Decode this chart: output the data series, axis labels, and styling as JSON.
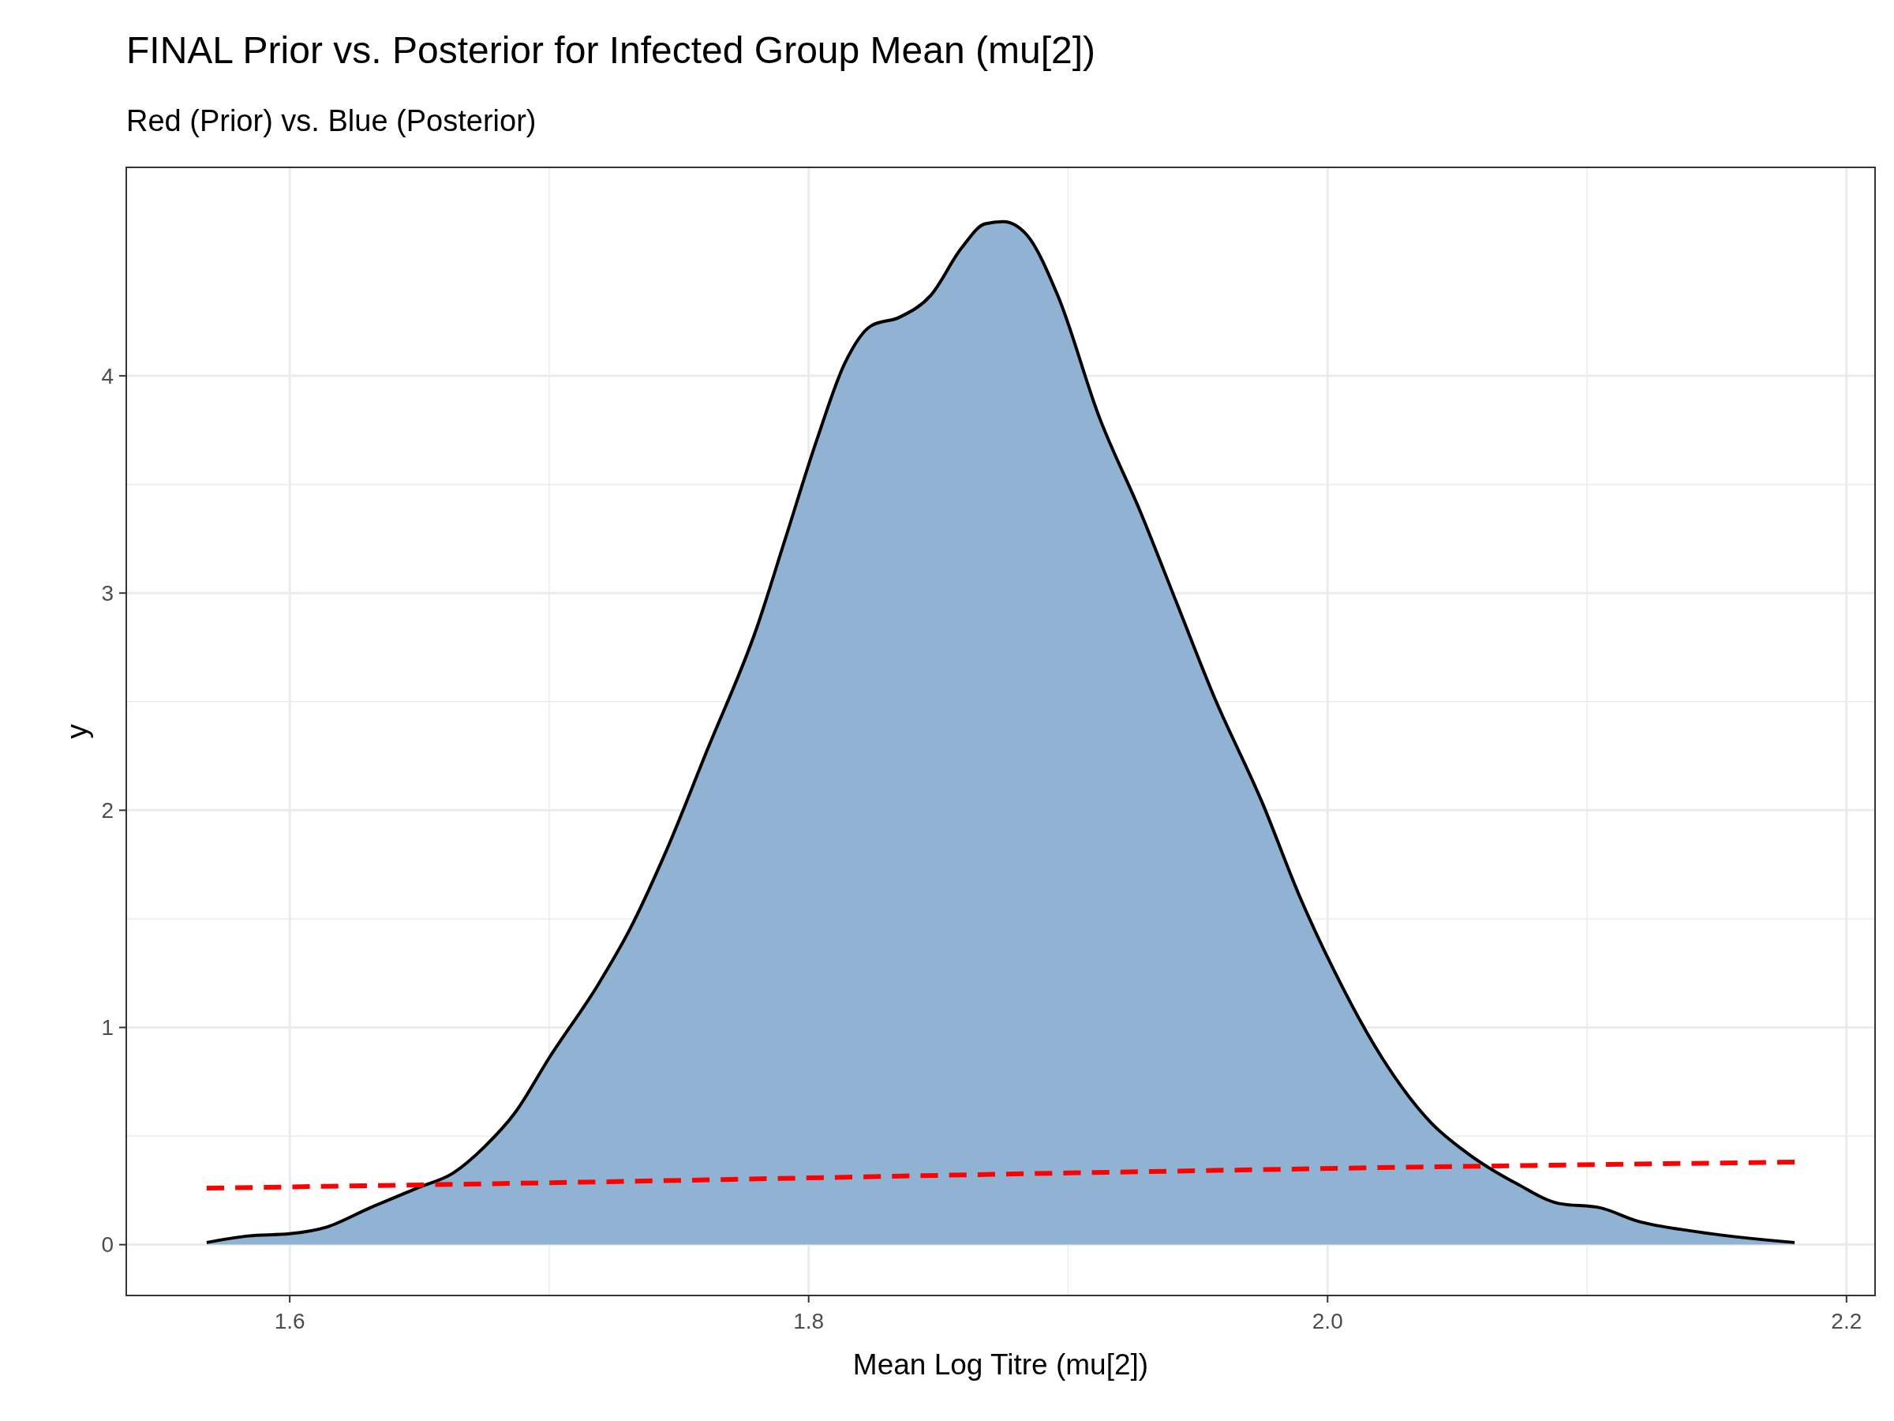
{
  "chart_data": {
    "type": "area",
    "title": "FINAL Prior vs. Posterior for Infected Group Mean (mu[2])",
    "subtitle": "Red (Prior) vs. Blue (Posterior)",
    "xlabel": "Mean Log Titre (mu[2])",
    "ylabel": "y",
    "xlim": [
      1.537,
      2.211
    ],
    "ylim": [
      -0.234,
      4.96
    ],
    "xticks": [
      {
        "value": 1.6,
        "label": "1.6"
      },
      {
        "value": 1.8,
        "label": "1.8"
      },
      {
        "value": 2.0,
        "label": "2.0"
      },
      {
        "value": 2.2,
        "label": "2.2"
      }
    ],
    "yticks": [
      0,
      1,
      2,
      3,
      4
    ],
    "grid": true,
    "series": [
      {
        "color": "#91b3d3",
        "x": [
          1.568,
          1.584,
          1.6,
          1.614,
          1.631,
          1.649,
          1.663,
          1.675,
          1.687,
          1.7,
          1.719,
          1.731,
          1.745,
          1.761,
          1.78,
          1.791,
          1.803,
          1.814,
          1.824,
          1.835,
          1.847,
          1.859,
          1.868,
          1.875,
          1.884,
          1.896,
          1.912,
          1.928,
          1.942,
          1.956,
          1.975,
          1.989,
          2.003,
          2.021,
          2.04,
          2.054,
          2.073,
          2.089,
          2.105,
          2.119,
          2.142,
          2.18
        ],
        "values": [
          0.01,
          0.04,
          0.05,
          0.08,
          0.17,
          0.26,
          0.33,
          0.45,
          0.61,
          0.86,
          1.2,
          1.45,
          1.81,
          2.28,
          2.84,
          3.25,
          3.7,
          4.06,
          4.23,
          4.27,
          4.37,
          4.59,
          4.7,
          4.71,
          4.65,
          4.37,
          3.81,
          3.37,
          2.95,
          2.53,
          2.03,
          1.61,
          1.25,
          0.86,
          0.56,
          0.42,
          0.28,
          0.19,
          0.17,
          0.11,
          0.06,
          0.01
        ]
      },
      {
        "type": "line",
        "color": "#ff0000",
        "line_style": "dashed",
        "x": [
          1.568,
          1.7,
          1.9,
          2.05,
          2.18
        ],
        "values": [
          0.26,
          0.285,
          0.33,
          0.36,
          0.38
        ]
      }
    ]
  }
}
